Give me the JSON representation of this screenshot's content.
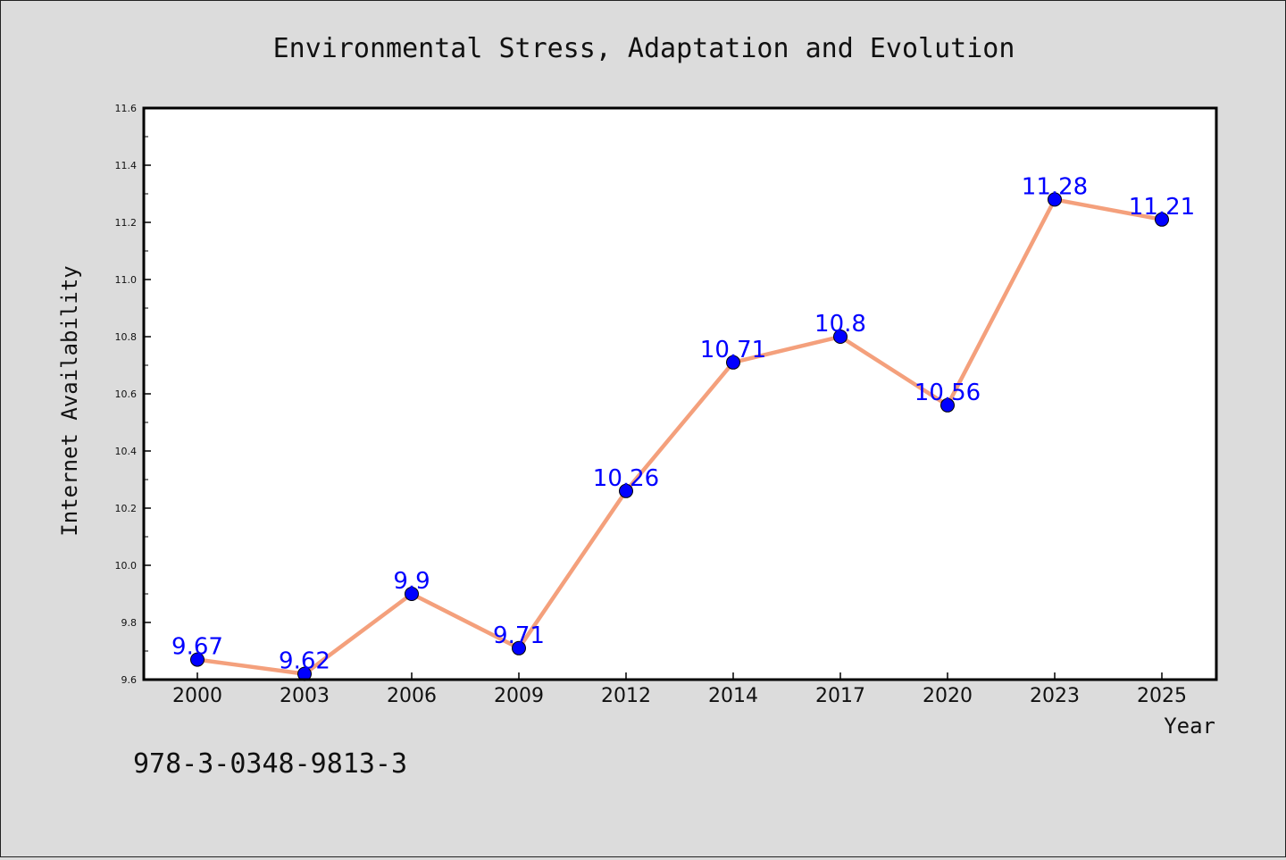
{
  "page": {
    "isbn": "978-3-0348-9813-3"
  },
  "chart_data": {
    "type": "line",
    "title": "Environmental Stress, Adaptation and Evolution",
    "xlabel": "Year",
    "ylabel": "Internet Availability",
    "categories": [
      "2000",
      "2003",
      "2006",
      "2009",
      "2012",
      "2014",
      "2017",
      "2020",
      "2023",
      "2025"
    ],
    "series": [
      {
        "values": [
          9.67,
          9.62,
          9.9,
          9.71,
          10.26,
          10.71,
          10.8,
          10.56,
          11.28,
          11.21
        ],
        "data_labels": [
          "9.67",
          "9.62",
          "9.9",
          "9.71",
          "10.26",
          "10.71",
          "10.8",
          "10.56",
          "11.28",
          "11.21"
        ],
        "line_color": "#f4a07c",
        "marker_color": "#0000ff",
        "label_color": "#0000ff"
      }
    ],
    "ylim": [
      9.6,
      11.6
    ],
    "yticks": [
      "9.6",
      "9.8",
      "10.0",
      "10.2",
      "10.4",
      "10.6",
      "10.8",
      "11.0",
      "11.2",
      "11.4",
      "11.6"
    ],
    "grid": false,
    "legend": "none",
    "background": "#dcdcdc",
    "plot_background": "#ffffff"
  }
}
